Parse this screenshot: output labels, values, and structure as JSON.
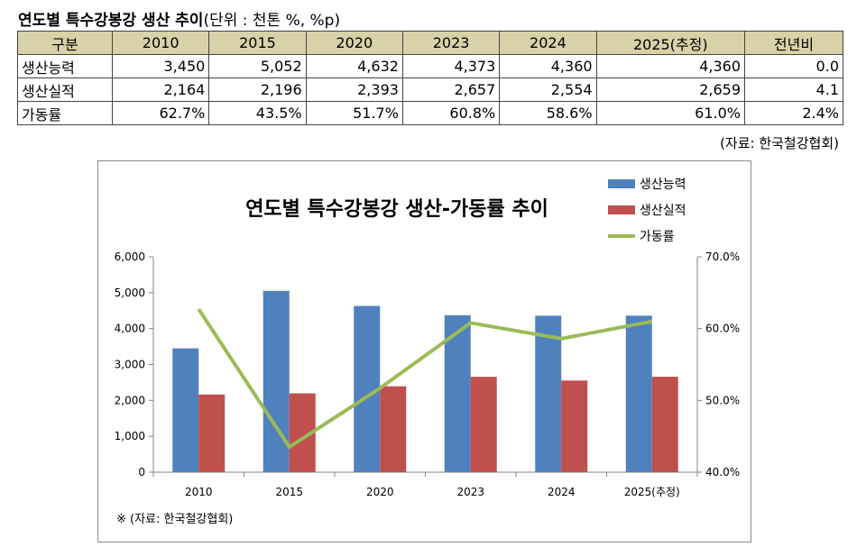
{
  "header": {
    "title_bold": "연도별 특수강봉강 생산 추이",
    "title_unit": "(단위 : 천톤 %, %p)"
  },
  "table": {
    "columns": [
      "구분",
      "2010",
      "2015",
      "2020",
      "2023",
      "2024",
      "2025(추정)",
      "전년비"
    ],
    "rows": [
      [
        "생산능력",
        "3,450",
        "5,052",
        "4,632",
        "4,373",
        "4,360",
        "4,360",
        "0.0"
      ],
      [
        "생산실적",
        "2,164",
        "2,196",
        "2,393",
        "2,657",
        "2,554",
        "2,659",
        "4.1"
      ],
      [
        "가동률",
        "62.7%",
        "43.5%",
        "51.7%",
        "60.8%",
        "58.6%",
        "61.0%",
        "2.4%"
      ]
    ],
    "source": "(자료: 한국철강협회)"
  },
  "chart_data": {
    "type": "bar",
    "title": "연도별 특수강봉강 생산-가동률 추이",
    "categories": [
      "2010",
      "2015",
      "2020",
      "2023",
      "2024",
      "2025(추정)"
    ],
    "series": [
      {
        "name": "생산능력",
        "kind": "bar",
        "axis": "left",
        "color": "#4f81bd",
        "values": [
          3450,
          5052,
          4632,
          4373,
          4360,
          4360
        ]
      },
      {
        "name": "생산실적",
        "kind": "bar",
        "axis": "left",
        "color": "#c0504d",
        "values": [
          2164,
          2196,
          2393,
          2657,
          2554,
          2659
        ]
      },
      {
        "name": "가동률",
        "kind": "line",
        "axis": "right",
        "color": "#9bbb59",
        "values": [
          62.7,
          43.5,
          51.7,
          60.8,
          58.6,
          61.0
        ]
      }
    ],
    "y_left": {
      "min": 0,
      "max": 6000,
      "ticks": [
        0,
        1000,
        2000,
        3000,
        4000,
        5000,
        6000
      ],
      "tick_labels": [
        "0",
        "1,000",
        "2,000",
        "3,000",
        "4,000",
        "5,000",
        "6,000"
      ]
    },
    "y_right": {
      "min": 40,
      "max": 70,
      "ticks": [
        40,
        50,
        60,
        70
      ],
      "tick_labels": [
        "40.0%",
        "50.0%",
        "60.0%",
        "70.0%"
      ]
    },
    "legend_position": "top-right",
    "grid": false,
    "note": "※ (자료: 한국철강협회)"
  }
}
